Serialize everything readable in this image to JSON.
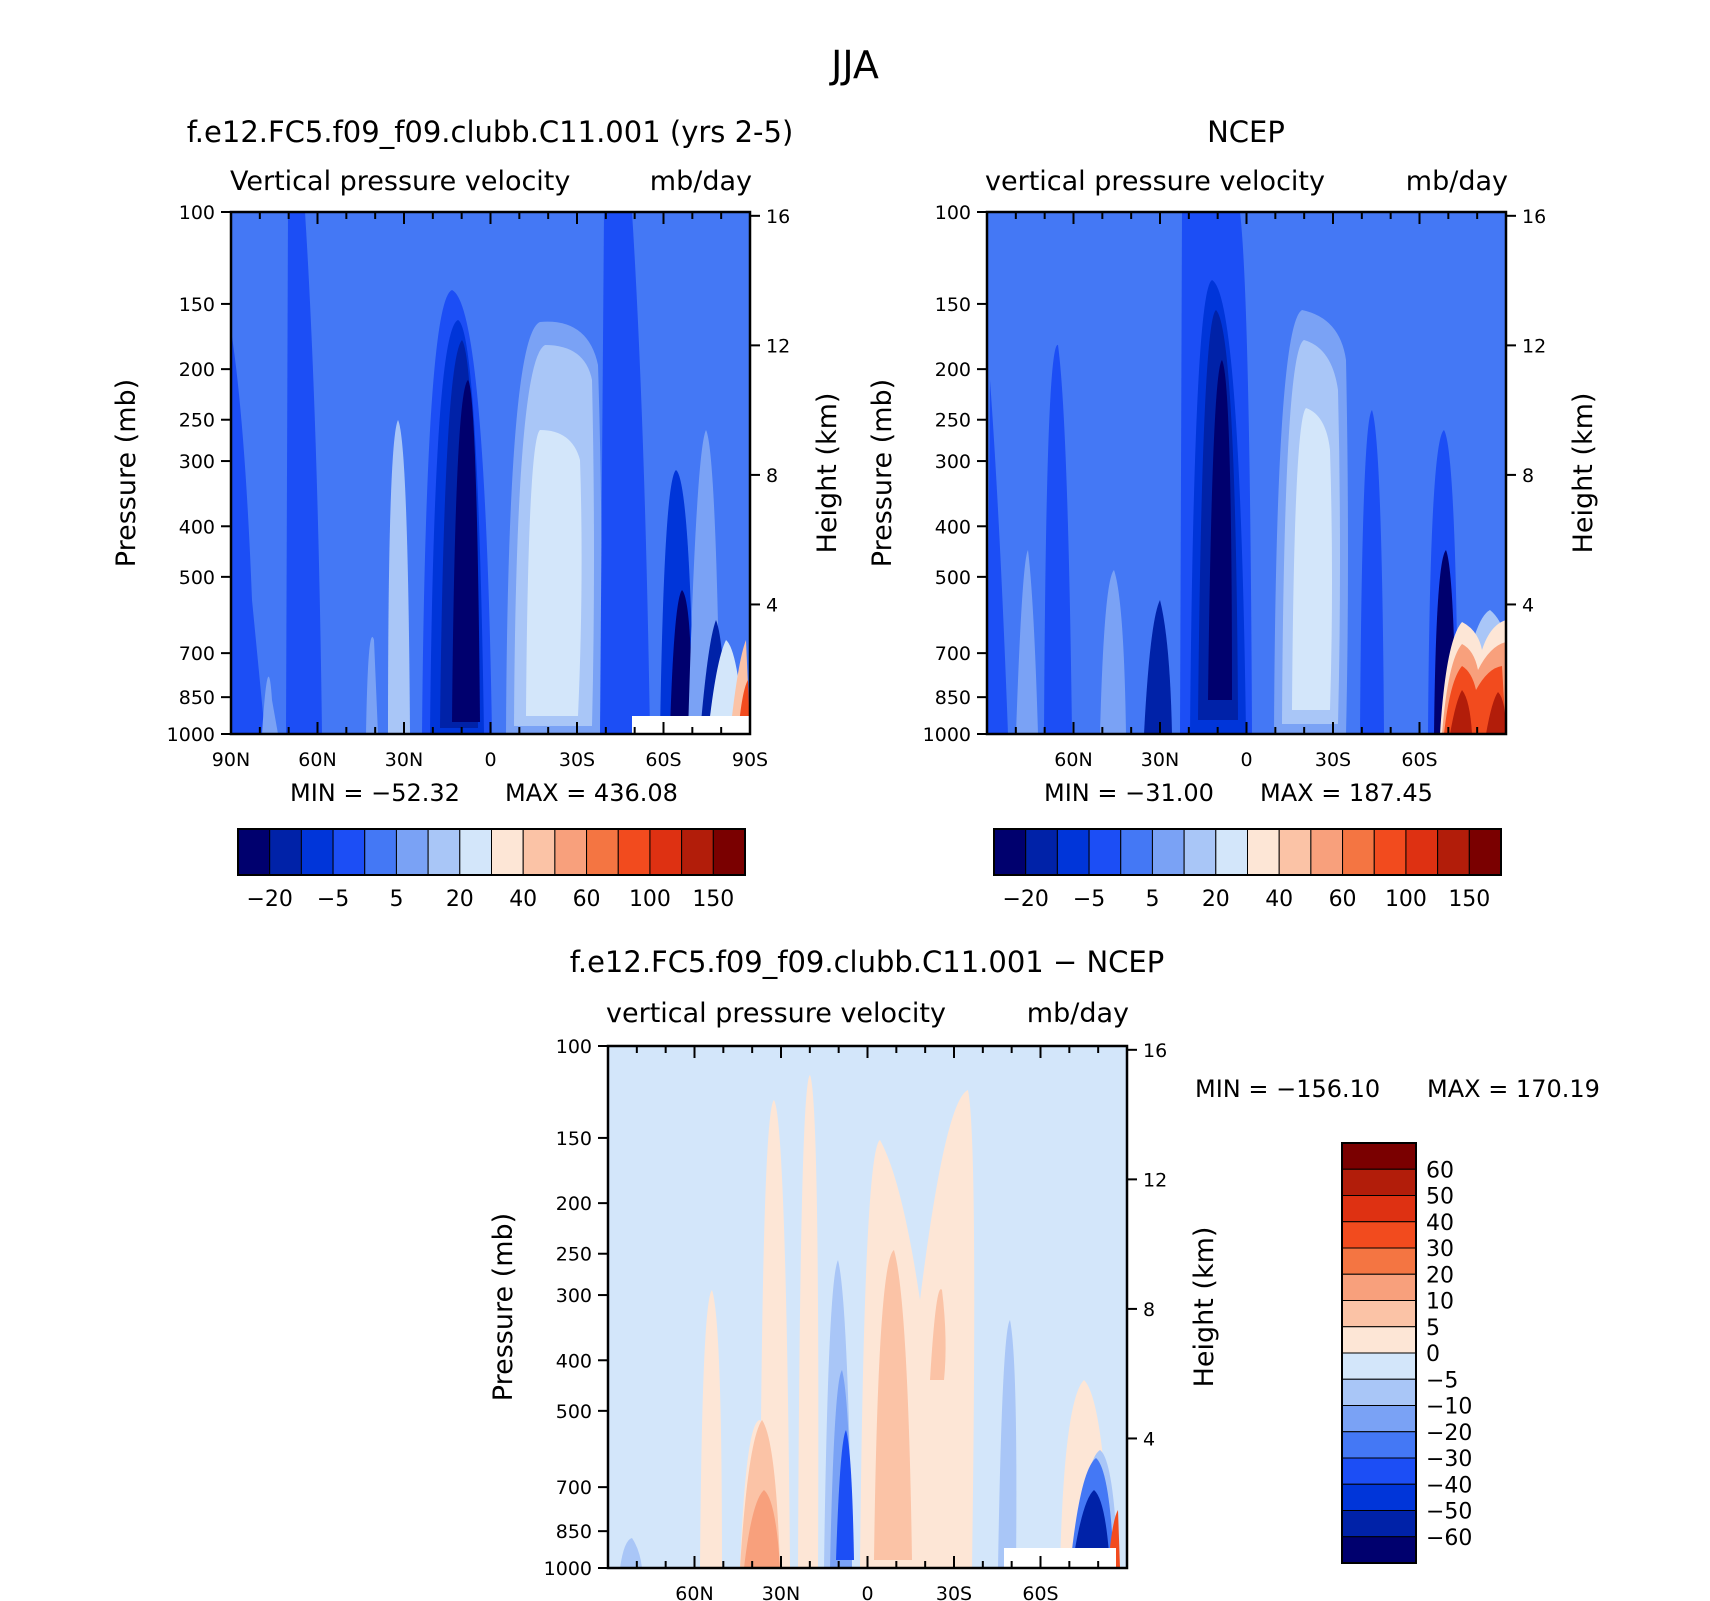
{
  "figure_title": "JJA",
  "colors": {
    "model_palette": [
      "#00006e",
      "#0022a8",
      "#0035d9",
      "#1c4ef5",
      "#4478f5",
      "#7aa2f5",
      "#a9c6f7",
      "#d3e6fa",
      "#fde6d6",
      "#fbc3a6",
      "#f8a07c",
      "#f47542",
      "#f24b1e",
      "#de3112",
      "#b21d0a",
      "#7a0000"
    ],
    "diff_palette": [
      "#00006e",
      "#0022a8",
      "#0035d9",
      "#1c4ef5",
      "#4478f5",
      "#7aa2f5",
      "#a9c6f7",
      "#d3e6fa",
      "#fde6d6",
      "#fbc3a6",
      "#f8a07c",
      "#f47542",
      "#f24b1e",
      "#de3112",
      "#b21d0a",
      "#7a0000"
    ],
    "axis": "#000000"
  },
  "chart_data": [
    {
      "type": "heatmap",
      "title": "f.e12.FC5.f09_f09.clubb.C11.001 (yrs 2-5)",
      "subtitle_left": "Vertical pressure velocity",
      "subtitle_right": "mb/day",
      "ylabel": "Pressure (mb)",
      "ylabel_right": "Height (km)",
      "x_ticks": [
        "90N",
        "60N",
        "30N",
        "0",
        "30S",
        "60S",
        "90S"
      ],
      "y_ticks": [
        "100",
        "150",
        "200",
        "250",
        "300",
        "400",
        "500",
        "700",
        "850",
        "1000"
      ],
      "y_ticks_right": [
        "16",
        "12",
        "8",
        "4"
      ],
      "y_log_scale": true,
      "ylim": [
        1000,
        100
      ],
      "min_label": "MIN = −52.32",
      "max_label": "MAX = 436.08",
      "colorbar_labels": [
        "−20",
        "−5",
        "5",
        "20",
        "40",
        "60",
        "100",
        "150"
      ],
      "colorbar_orientation": "horizontal"
    },
    {
      "type": "heatmap",
      "title": "NCEP",
      "subtitle_left": "vertical pressure velocity",
      "subtitle_right": "mb/day",
      "ylabel": "Pressure (mb)",
      "ylabel_right": "Height (km)",
      "x_ticks": [
        "60N",
        "30N",
        "0",
        "30S",
        "60S"
      ],
      "y_ticks": [
        "100",
        "150",
        "200",
        "250",
        "300",
        "400",
        "500",
        "700",
        "850",
        "1000"
      ],
      "y_ticks_right": [
        "16",
        "12",
        "8",
        "4"
      ],
      "y_log_scale": true,
      "ylim": [
        1000,
        100
      ],
      "min_label": "MIN = −31.00",
      "max_label": "MAX = 187.45",
      "colorbar_labels": [
        "−20",
        "−5",
        "5",
        "20",
        "40",
        "60",
        "100",
        "150"
      ],
      "colorbar_orientation": "horizontal"
    },
    {
      "type": "heatmap",
      "title": "f.e12.FC5.f09_f09.clubb.C11.001 − NCEP",
      "subtitle_left": "vertical pressure velocity",
      "subtitle_right": "mb/day",
      "ylabel": "Pressure (mb)",
      "ylabel_right": "Height (km)",
      "x_ticks": [
        "60N",
        "30N",
        "0",
        "30S",
        "60S"
      ],
      "y_ticks": [
        "100",
        "150",
        "200",
        "250",
        "300",
        "400",
        "500",
        "700",
        "850",
        "1000"
      ],
      "y_ticks_right": [
        "16",
        "12",
        "8",
        "4"
      ],
      "y_log_scale": true,
      "ylim": [
        1000,
        100
      ],
      "min_label": "MIN = −156.10",
      "max_label": "MAX = 170.19",
      "colorbar_labels": [
        "60",
        "50",
        "40",
        "30",
        "20",
        "10",
        "5",
        "0",
        "−5",
        "−10",
        "−20",
        "−30",
        "−40",
        "−50",
        "−60"
      ],
      "colorbar_orientation": "vertical"
    }
  ]
}
